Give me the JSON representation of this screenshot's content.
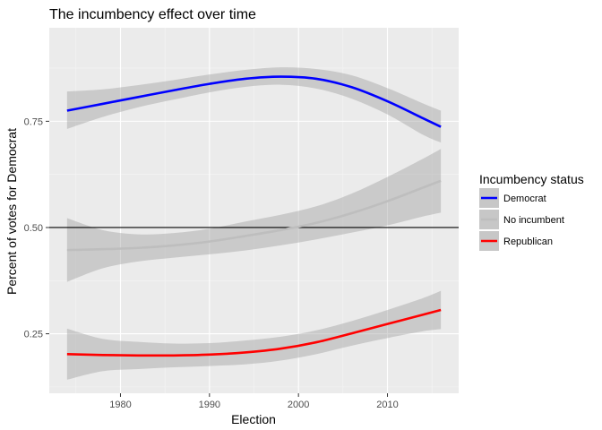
{
  "chart_data": {
    "type": "line",
    "title": "The incumbency effect over time",
    "xlabel": "Election",
    "ylabel": "Percent of votes for Democrat",
    "xlim": [
      1972,
      2018
    ],
    "ylim": [
      0.11,
      0.97
    ],
    "x_ticks": [
      1980,
      1990,
      2000,
      2010
    ],
    "y_ticks": [
      0.25,
      0.5,
      0.75
    ],
    "y_tick_labels": [
      "0.25",
      "0.50",
      "0.75"
    ],
    "reference_line": {
      "y": 0.5,
      "color": "#000000"
    },
    "grid": true,
    "legend": {
      "title": "Incumbency status",
      "position": "right"
    },
    "series": [
      {
        "name": "Democrat",
        "color": "#0000ff",
        "x": [
          1974,
          1978,
          1982,
          1986,
          1990,
          1994,
          1998,
          2002,
          2006,
          2010,
          2014,
          2016
        ],
        "y": [
          0.775,
          0.791,
          0.807,
          0.823,
          0.838,
          0.85,
          0.855,
          0.85,
          0.83,
          0.797,
          0.757,
          0.737
        ],
        "lower": [
          0.732,
          0.76,
          0.783,
          0.801,
          0.818,
          0.831,
          0.836,
          0.827,
          0.803,
          0.766,
          0.718,
          0.7
        ],
        "upper": [
          0.82,
          0.825,
          0.835,
          0.847,
          0.86,
          0.871,
          0.877,
          0.873,
          0.858,
          0.828,
          0.792,
          0.775
        ]
      },
      {
        "name": "No incumbent",
        "color": "#bebebe",
        "x": [
          1974,
          1978,
          1982,
          1986,
          1990,
          1994,
          1998,
          2002,
          2006,
          2010,
          2014,
          2016
        ],
        "y": [
          0.447,
          0.449,
          0.452,
          0.458,
          0.467,
          0.48,
          0.494,
          0.511,
          0.534,
          0.562,
          0.594,
          0.61
        ],
        "lower": [
          0.372,
          0.404,
          0.42,
          0.429,
          0.437,
          0.446,
          0.458,
          0.472,
          0.488,
          0.505,
          0.526,
          0.535
        ],
        "upper": [
          0.522,
          0.494,
          0.484,
          0.487,
          0.497,
          0.514,
          0.53,
          0.55,
          0.58,
          0.619,
          0.662,
          0.685
        ]
      },
      {
        "name": "Republican",
        "color": "#ff0000",
        "x": [
          1974,
          1978,
          1982,
          1986,
          1990,
          1994,
          1998,
          2002,
          2006,
          2010,
          2014,
          2016
        ],
        "y": [
          0.202,
          0.2,
          0.199,
          0.199,
          0.201,
          0.206,
          0.215,
          0.23,
          0.251,
          0.273,
          0.295,
          0.306
        ],
        "lower": [
          0.142,
          0.162,
          0.167,
          0.171,
          0.174,
          0.178,
          0.187,
          0.202,
          0.222,
          0.24,
          0.256,
          0.261
        ],
        "upper": [
          0.262,
          0.238,
          0.231,
          0.227,
          0.228,
          0.234,
          0.243,
          0.258,
          0.28,
          0.306,
          0.334,
          0.351
        ]
      }
    ]
  }
}
